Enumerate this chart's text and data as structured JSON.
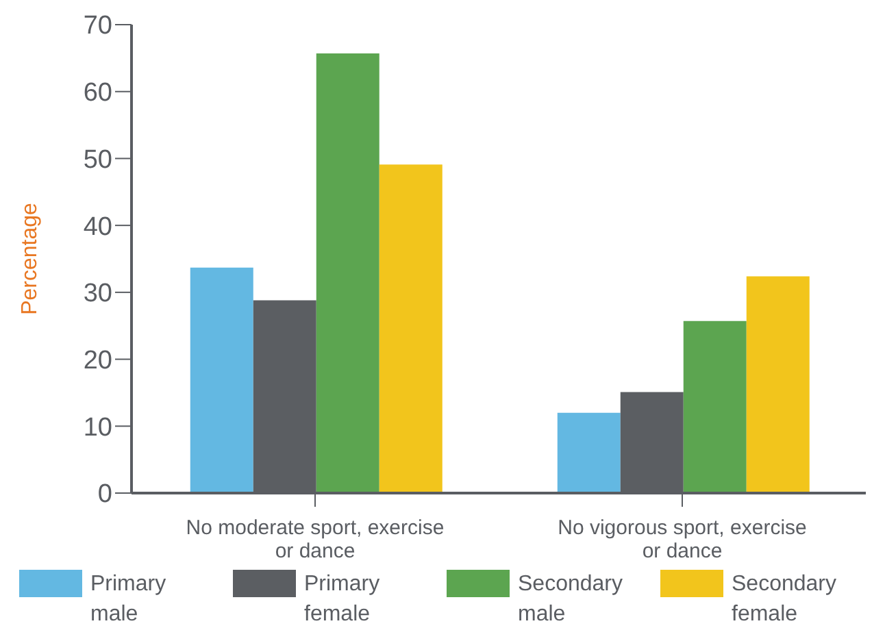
{
  "chart_data": {
    "type": "bar",
    "ylabel": "Percentage",
    "categories": [
      "No moderate sport, exercise or dance",
      "No vigorous sport, exercise or dance"
    ],
    "series": [
      {
        "name": "Primary male",
        "color": "#63b8e2",
        "values": [
          33.7,
          12.0
        ]
      },
      {
        "name": "Primary female",
        "color": "#5b5e62",
        "values": [
          28.8,
          15.1
        ]
      },
      {
        "name": "Secondary male",
        "color": "#5ca550",
        "values": [
          65.7,
          25.7
        ]
      },
      {
        "name": "Secondary female",
        "color": "#f2c51c",
        "values": [
          49.1,
          32.4
        ]
      }
    ],
    "ylim": [
      0,
      70
    ],
    "yticks": [
      0,
      10,
      20,
      30,
      40,
      50,
      60,
      70
    ],
    "grid": false,
    "legend": "bottom"
  }
}
